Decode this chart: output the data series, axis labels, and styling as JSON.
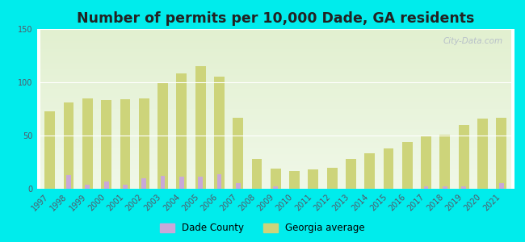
{
  "title": "Number of permits per 10,000 Dade, GA residents",
  "years": [
    1997,
    1998,
    1999,
    2000,
    2001,
    2002,
    2003,
    2004,
    2005,
    2006,
    2007,
    2008,
    2009,
    2010,
    2011,
    2012,
    2013,
    2014,
    2015,
    2016,
    2017,
    2018,
    2019,
    2020,
    2021
  ],
  "dade_county": [
    0,
    13,
    4,
    7,
    4,
    10,
    12,
    11,
    11,
    14,
    5,
    0,
    2,
    0,
    0,
    0,
    0,
    0,
    0,
    0,
    2,
    2,
    2,
    0,
    5
  ],
  "georgia_avg": [
    73,
    81,
    85,
    83,
    84,
    85,
    99,
    108,
    115,
    105,
    67,
    28,
    19,
    17,
    18,
    20,
    28,
    33,
    38,
    44,
    49,
    51,
    60,
    66,
    67
  ],
  "dade_color": "#c9a8d9",
  "georgia_color": "#cdd47a",
  "background_color": "#00ecec",
  "grad_top": "#e2f0d0",
  "grad_bottom": "#f0f8e8",
  "ylim": [
    0,
    150
  ],
  "yticks": [
    0,
    50,
    100,
    150
  ],
  "bar_width": 0.55,
  "title_fontsize": 12.5,
  "tick_fontsize": 7,
  "legend_fontsize": 8.5
}
